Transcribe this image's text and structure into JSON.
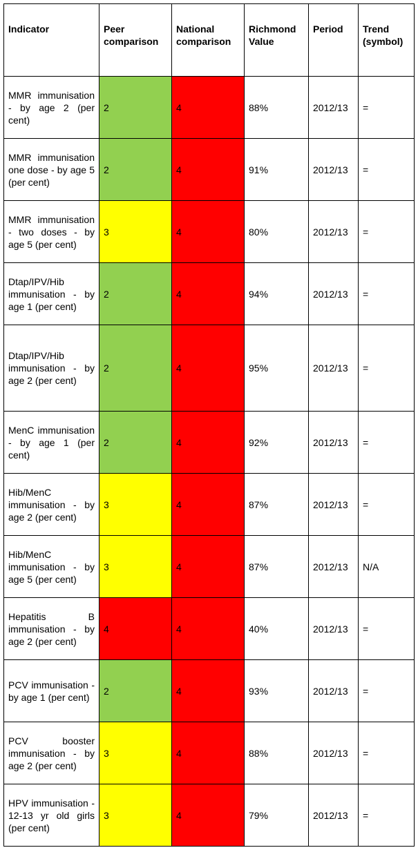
{
  "table": {
    "headers": [
      "Indicator",
      "Peer comparison",
      "National comparison",
      "Richmond Value",
      "Period",
      "Trend (symbol)"
    ],
    "colors": {
      "2": "#92d050",
      "3": "#ffff00",
      "4": "#ff0000"
    },
    "rows": [
      {
        "indicator": "MMR immunisation - by age 2 (per cent)",
        "peer": "2",
        "national": "4",
        "value": "88%",
        "period": "2012/13",
        "trend": "="
      },
      {
        "indicator": "MMR immunisation one dose - by age 5 (per cent)",
        "peer": "2",
        "national": "4",
        "value": "91%",
        "period": "2012/13",
        "trend": "="
      },
      {
        "indicator": "MMR immunisation - two doses - by age 5 (per cent)",
        "peer": "3",
        "national": "4",
        "value": "80%",
        "period": "2012/13",
        "trend": "="
      },
      {
        "indicator": "Dtap/IPV/Hib immunisation - by age 1 (per cent)",
        "peer": "2",
        "national": "4",
        "value": "94%",
        "period": "2012/13",
        "trend": "="
      },
      {
        "indicator": "Dtap/IPV/Hib immunisation - by age 2 (per cent)",
        "peer": "2",
        "national": "4",
        "value": "95%",
        "period": "2012/13",
        "trend": "="
      },
      {
        "indicator": "MenC immunisation - by age 1 (per cent)",
        "peer": "2",
        "national": "4",
        "value": "92%",
        "period": "2012/13",
        "trend": "="
      },
      {
        "indicator": "Hib/MenC immunisation - by age 2 (per cent)",
        "peer": "3",
        "national": "4",
        "value": "87%",
        "period": "2012/13",
        "trend": "="
      },
      {
        "indicator": "Hib/MenC immunisation - by age 5 (per cent)",
        "peer": "3",
        "national": "4",
        "value": "87%",
        "period": "2012/13",
        "trend": "N/A"
      },
      {
        "indicator": "Hepatitis B immunisation - by age 2 (per cent)",
        "peer": "4",
        "national": "4",
        "value": "40%",
        "period": "2012/13",
        "trend": "="
      },
      {
        "indicator": "PCV immunisation - by age 1 (per cent)",
        "peer": "2",
        "national": "4",
        "value": "93%",
        "period": "2012/13",
        "trend": "="
      },
      {
        "indicator": "PCV booster immunisation - by age 2 (per cent)",
        "peer": "3",
        "national": "4",
        "value": "88%",
        "period": "2012/13",
        "trend": "="
      },
      {
        "indicator": "HPV immunisation - 12-13 yr old girls (per cent)",
        "peer": "3",
        "national": "4",
        "value": "79%",
        "period": "2012/13",
        "trend": "="
      }
    ]
  }
}
